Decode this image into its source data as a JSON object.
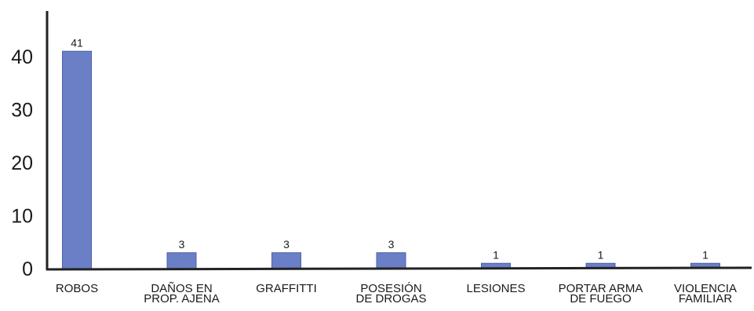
{
  "chart_data": {
    "type": "bar",
    "title": "",
    "xlabel": "",
    "ylabel": "",
    "ylim": [
      0,
      48
    ],
    "yticks": [
      0,
      10,
      20,
      30,
      40
    ],
    "grid": false,
    "categories": [
      [
        "ROBOS"
      ],
      [
        "DAÑOS EN",
        "PROP. AJENA"
      ],
      [
        "GRAFFITTI"
      ],
      [
        "POSESIÓN",
        "DE DROGAS"
      ],
      [
        "LESIONES"
      ],
      [
        "PORTAR ARMA",
        "DE FUEGO"
      ],
      [
        "VIOLENCIA",
        "FAMILIAR"
      ]
    ],
    "values": [
      41,
      3,
      3,
      3,
      1,
      1,
      1
    ],
    "data_labels": [
      "41",
      "3",
      "3",
      "3",
      "1",
      "1",
      "1"
    ],
    "colors": {
      "bar": "#6b7fc6",
      "bar_edge": "#4e60a8",
      "axis": "#222222",
      "text": "#1a1a1a"
    }
  }
}
